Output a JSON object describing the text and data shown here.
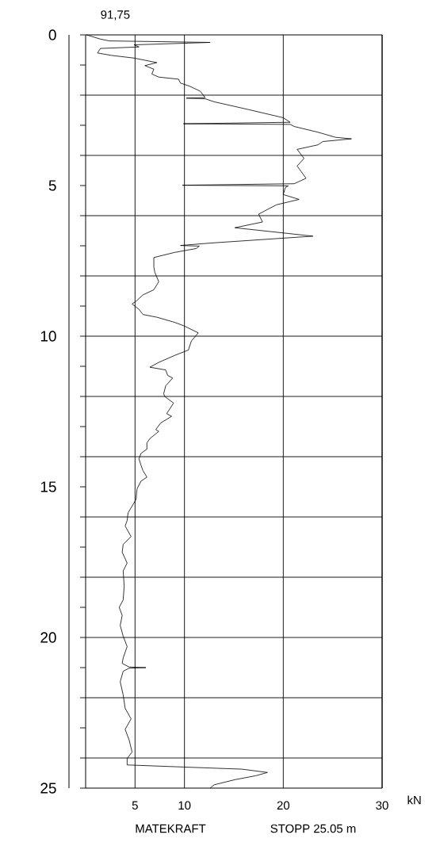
{
  "chart_data": {
    "type": "line",
    "title": "91,75",
    "xlabel": "kN",
    "annotations": [
      "MATEKRAFT",
      "STOPP 25.05 m"
    ],
    "orientation": "horizontal",
    "xlim": [
      0,
      30
    ],
    "xticks": [
      5,
      10,
      20,
      30
    ],
    "ylim": [
      25,
      0
    ],
    "yticks": [
      0,
      {
        "value": 1,
        "label": null
      },
      {
        "value": 2,
        "label": null
      },
      {
        "value": 3,
        "label": null
      },
      {
        "value": 4,
        "label": null
      },
      5,
      {
        "value": 6,
        "label": null
      },
      {
        "value": 7,
        "label": null
      },
      {
        "value": 8,
        "label": null
      },
      {
        "value": 9,
        "label": null
      },
      10,
      {
        "value": 11,
        "label": null
      },
      {
        "value": 12,
        "label": null
      },
      {
        "value": 13,
        "label": null
      },
      {
        "value": 14,
        "label": null
      },
      15,
      {
        "value": 16,
        "label": null
      },
      {
        "value": 17,
        "label": null
      },
      {
        "value": 18,
        "label": null
      },
      {
        "value": 19,
        "label": null
      },
      20,
      {
        "value": 21,
        "label": null
      },
      {
        "value": 22,
        "label": null
      },
      {
        "value": 23,
        "label": null
      },
      {
        "value": 24,
        "label": null
      },
      25
    ],
    "grid": "x",
    "ref_lines": [
      {
        "axis": "y",
        "value": 2,
        "color": "#000000"
      },
      {
        "axis": "y",
        "value": 4,
        "color": "#000000"
      },
      {
        "axis": "y",
        "value": 6,
        "color": "#000000"
      },
      {
        "axis": "y",
        "value": 8,
        "color": "#000000"
      },
      {
        "axis": "y",
        "value": 10,
        "color": "#000000"
      },
      {
        "axis": "y",
        "value": 12,
        "color": "#000000"
      },
      {
        "axis": "y",
        "value": 14,
        "color": "#000000"
      },
      {
        "axis": "y",
        "value": 16,
        "color": "#000000"
      },
      {
        "axis": "y",
        "value": 18,
        "color": "#000000"
      },
      {
        "axis": "y",
        "value": 20,
        "color": "#000000"
      },
      {
        "axis": "y",
        "value": 22,
        "color": "#000000"
      },
      {
        "axis": "y",
        "value": 24,
        "color": "#000000"
      }
    ],
    "line_style": "solid",
    "marker": "none",
    "series": [
      {
        "color": "#000000",
        "x": [
          0,
          0.14,
          0.2,
          0.25,
          0.33,
          0.4,
          0.45,
          0.6,
          0.68,
          0.77,
          0.92,
          1.02,
          1.14,
          1.3,
          1.4,
          1.47,
          1.6,
          1.7,
          1.87,
          2.08,
          2.1,
          2.12,
          2.22,
          2.48,
          2.75,
          2.9,
          2.95,
          2.97,
          3.04,
          3.23,
          3.4,
          3.45,
          3.54,
          3.65,
          3.8,
          4.1,
          4.35,
          4.76,
          4.94,
          4.99,
          5.01,
          5.07,
          5.3,
          5.46,
          5.64,
          5.95,
          6.21,
          6.4,
          6.68,
          6.91,
          6.99,
          7.01,
          7.09,
          7.22,
          7.39,
          7.7,
          7.88,
          8.19,
          8.46,
          8.63,
          8.84,
          8.93,
          9.11,
          9.28,
          9.37,
          9.54,
          9.65,
          9.89,
          10.16,
          10.46,
          10.64,
          10.87,
          11.03,
          11.12,
          11.3,
          11.39,
          11.65,
          11.91,
          12.0,
          12.22,
          12.57,
          12.66,
          12.88,
          13.1,
          13.16,
          13.4,
          13.54,
          13.75,
          13.89,
          14.07,
          14.28,
          14.46,
          14.68,
          14.81,
          15.07,
          15.42,
          15.64,
          15.86,
          16.12,
          16.3,
          16.65,
          16.91,
          17.17,
          17.53,
          17.79,
          18.3,
          18.75,
          19.0,
          19.27,
          19.6,
          19.96,
          20.3,
          20.68,
          20.86,
          20.98,
          21.0,
          21.02,
          21.12,
          21.47,
          21.91,
          22.35,
          22.7,
          23.05,
          23.4,
          23.8,
          24.02,
          24.23,
          24.3,
          24.37,
          24.48,
          24.59,
          24.72,
          24.89,
          25.0
        ],
        "values": [
          0.1,
          1.5,
          2.4,
          12.6,
          4.9,
          5.4,
          1.5,
          1.2,
          2.6,
          4.9,
          7.2,
          6.0,
          6.9,
          6.7,
          7.4,
          9.4,
          9.6,
          10.5,
          11.6,
          12.1,
          10.2,
          12.1,
          13.0,
          16.5,
          20.0,
          20.7,
          9.9,
          20.7,
          21.1,
          23.5,
          25.3,
          26.9,
          24.0,
          23.5,
          21.4,
          22.1,
          21.4,
          22.3,
          21.1,
          9.8,
          20.5,
          20.2,
          20.0,
          21.6,
          19.3,
          17.5,
          17.9,
          15.1,
          23.0,
          12.6,
          9.6,
          11.5,
          11.2,
          9.0,
          6.9,
          6.9,
          7.0,
          7.4,
          6.9,
          5.8,
          5.1,
          4.7,
          5.4,
          5.8,
          7.2,
          9.0,
          9.9,
          11.4,
          10.7,
          10.4,
          9.0,
          7.4,
          6.5,
          8.1,
          8.3,
          8.8,
          8.1,
          7.9,
          8.0,
          8.9,
          8.2,
          8.7,
          7.6,
          7.1,
          7.4,
          6.5,
          6.2,
          6.2,
          5.6,
          5.4,
          5.6,
          5.8,
          6.2,
          5.6,
          5.2,
          5.1,
          4.7,
          4.3,
          4.2,
          4.0,
          4.6,
          3.8,
          3.7,
          4.2,
          3.8,
          3.9,
          3.8,
          3.4,
          3.7,
          3.5,
          3.8,
          4.2,
          3.8,
          3.7,
          4.4,
          6.1,
          4.4,
          3.8,
          3.5,
          3.8,
          4.0,
          4.6,
          4.0,
          4.4,
          4.7,
          4.2,
          4.2,
          9.9,
          15.8,
          18.4,
          17.2,
          15.1,
          13.0,
          12.6
        ]
      }
    ]
  }
}
